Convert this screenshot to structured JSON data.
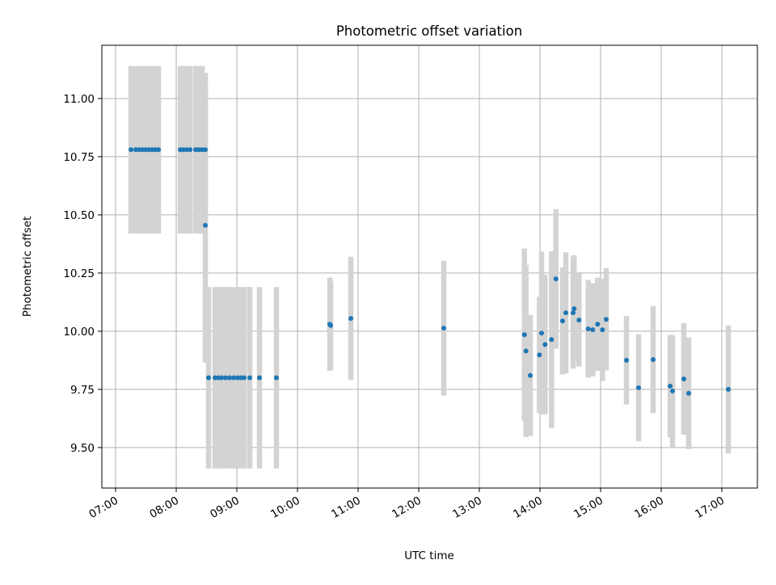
{
  "chart_data": {
    "type": "scatter",
    "title": "Photometric offset variation",
    "xlabel": "UTC time",
    "ylabel": "Photometric offset",
    "xlim": [
      6.773,
      17.587
    ],
    "ylim": [
      9.326,
      11.229
    ],
    "grid": true,
    "x_unit": "hours UTC",
    "xticks": [
      {
        "v": 7,
        "label": "07:00"
      },
      {
        "v": 8,
        "label": "08:00"
      },
      {
        "v": 9,
        "label": "09:00"
      },
      {
        "v": 10,
        "label": "10:00"
      },
      {
        "v": 11,
        "label": "11:00"
      },
      {
        "v": 12,
        "label": "12:00"
      },
      {
        "v": 13,
        "label": "13:00"
      },
      {
        "v": 14,
        "label": "14:00"
      },
      {
        "v": 15,
        "label": "15:00"
      },
      {
        "v": 16,
        "label": "16:00"
      },
      {
        "v": 17,
        "label": "17:00"
      }
    ],
    "yticks": [
      {
        "v": 9.5,
        "label": "9.50"
      },
      {
        "v": 9.75,
        "label": "9.75"
      },
      {
        "v": 10.0,
        "label": "10.00"
      },
      {
        "v": 10.25,
        "label": "10.25"
      },
      {
        "v": 10.5,
        "label": "10.50"
      },
      {
        "v": 10.75,
        "label": "10.75"
      },
      {
        "v": 11.0,
        "label": "11.00"
      }
    ],
    "marker_color": "#1f77b4",
    "errorbar_color": "#d3d3d3",
    "points": [
      [
        7.253,
        10.78,
        0.36
      ],
      [
        7.333,
        10.78,
        0.36
      ],
      [
        7.387,
        10.78,
        0.36
      ],
      [
        7.44,
        10.78,
        0.36
      ],
      [
        7.493,
        10.78,
        0.36
      ],
      [
        7.547,
        10.78,
        0.36
      ],
      [
        7.6,
        10.78,
        0.36
      ],
      [
        7.653,
        10.78,
        0.36
      ],
      [
        7.707,
        10.78,
        0.36
      ],
      [
        8.067,
        10.78,
        0.36
      ],
      [
        8.12,
        10.78,
        0.36
      ],
      [
        8.173,
        10.78,
        0.36
      ],
      [
        8.227,
        10.78,
        0.36
      ],
      [
        8.32,
        10.78,
        0.36
      ],
      [
        8.373,
        10.78,
        0.36
      ],
      [
        8.427,
        10.78,
        0.36
      ],
      [
        8.48,
        10.78,
        0.33
      ],
      [
        8.48,
        10.455,
        0.59
      ],
      [
        8.533,
        9.8,
        0.39
      ],
      [
        8.64,
        9.8,
        0.39
      ],
      [
        8.693,
        9.8,
        0.39
      ],
      [
        8.747,
        9.8,
        0.39
      ],
      [
        8.813,
        9.8,
        0.39
      ],
      [
        8.88,
        9.8,
        0.39
      ],
      [
        8.947,
        9.8,
        0.39
      ],
      [
        9.013,
        9.8,
        0.39
      ],
      [
        9.067,
        9.8,
        0.39
      ],
      [
        9.12,
        9.8,
        0.39
      ],
      [
        9.213,
        9.8,
        0.39
      ],
      [
        9.373,
        9.8,
        0.39
      ],
      [
        9.653,
        9.8,
        0.39
      ],
      [
        10.533,
        10.03,
        0.2
      ],
      [
        10.547,
        10.025,
        0.19
      ],
      [
        10.88,
        10.055,
        0.265
      ],
      [
        12.413,
        10.013,
        0.29
      ],
      [
        13.743,
        9.985,
        0.37
      ],
      [
        13.769,
        9.915,
        0.37
      ],
      [
        13.84,
        9.81,
        0.26
      ],
      [
        13.991,
        9.898,
        0.25
      ],
      [
        14.027,
        9.992,
        0.35
      ],
      [
        14.084,
        9.943,
        0.3
      ],
      [
        14.191,
        9.964,
        0.38
      ],
      [
        14.263,
        10.225,
        0.3
      ],
      [
        14.373,
        10.044,
        0.23
      ],
      [
        14.427,
        10.079,
        0.26
      ],
      [
        14.547,
        10.079,
        0.24
      ],
      [
        14.564,
        10.097,
        0.23
      ],
      [
        14.644,
        10.048,
        0.2
      ],
      [
        14.796,
        10.01,
        0.21
      ],
      [
        14.871,
        10.006,
        0.2
      ],
      [
        14.951,
        10.03,
        0.2
      ],
      [
        15.031,
        10.006,
        0.22
      ],
      [
        15.093,
        10.051,
        0.22
      ],
      [
        15.427,
        9.875,
        0.19
      ],
      [
        15.627,
        9.757,
        0.23
      ],
      [
        15.867,
        9.878,
        0.23
      ],
      [
        16.147,
        9.764,
        0.22
      ],
      [
        16.187,
        9.743,
        0.24
      ],
      [
        16.373,
        9.795,
        0.24
      ],
      [
        16.453,
        9.733,
        0.24
      ],
      [
        17.107,
        9.75,
        0.275
      ]
    ]
  }
}
